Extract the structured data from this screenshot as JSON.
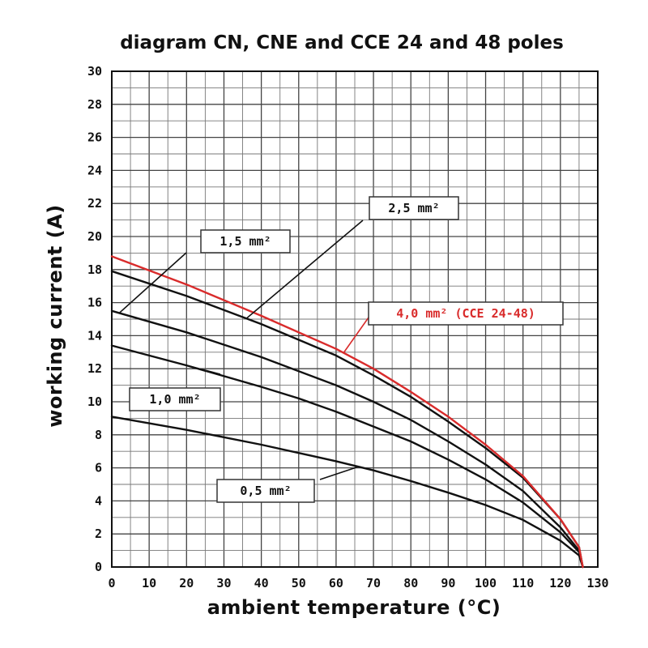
{
  "chart_data": {
    "type": "line",
    "title": "diagram CN, CNE and CCE 24 and 48 poles",
    "xlabel": "ambient temperature (°C)",
    "ylabel": "working current (A)",
    "xlim": [
      0,
      130
    ],
    "ylim": [
      0,
      30
    ],
    "x_ticks": [
      "0",
      "10",
      "20",
      "30",
      "40",
      "50",
      "60",
      "70",
      "80",
      "90",
      "100",
      "110",
      "120",
      "130"
    ],
    "y_ticks": [
      "0",
      "2",
      "4",
      "6",
      "8",
      "10",
      "12",
      "14",
      "16",
      "18",
      "20",
      "22",
      "24",
      "26",
      "28",
      "30"
    ],
    "grid": true,
    "x_minor_step": 5,
    "y_minor_step": 1,
    "series": [
      {
        "name": "0,5 mm²",
        "label": "0,5 mm²",
        "color": "#111111",
        "x": [
          0,
          20,
          40,
          60,
          70,
          80,
          90,
          100,
          110,
          120,
          125,
          126
        ],
        "y": [
          9.1,
          8.3,
          7.4,
          6.4,
          5.85,
          5.2,
          4.5,
          3.75,
          2.85,
          1.6,
          0.7,
          0
        ]
      },
      {
        "name": "1,0 mm²",
        "label": "1,0 mm²",
        "color": "#111111",
        "x": [
          0,
          20,
          40,
          50,
          60,
          80,
          90,
          100,
          110,
          120,
          125,
          126
        ],
        "y": [
          13.4,
          12.2,
          10.9,
          10.2,
          9.4,
          7.6,
          6.5,
          5.3,
          3.9,
          2.1,
          0.9,
          0
        ]
      },
      {
        "name": "1,5 mm²",
        "label": "1,5 mm²",
        "color": "#111111",
        "x": [
          0,
          20,
          40,
          60,
          70,
          80,
          90,
          100,
          110,
          120,
          125,
          126
        ],
        "y": [
          15.5,
          14.2,
          12.7,
          11.0,
          10.0,
          8.9,
          7.6,
          6.2,
          4.6,
          2.4,
          1.0,
          0
        ]
      },
      {
        "name": "2,5 mm²",
        "label": "2,5 mm²",
        "color": "#111111",
        "x": [
          0,
          20,
          40,
          60,
          70,
          80,
          90,
          100,
          110,
          120,
          125,
          126
        ],
        "y": [
          17.9,
          16.4,
          14.7,
          12.8,
          11.6,
          10.3,
          8.8,
          7.2,
          5.4,
          2.9,
          1.2,
          0
        ]
      },
      {
        "name": "4,0 mm² (CCE 24-48)",
        "label": "4,0 mm² (CCE 24-48)",
        "color": "#d92b2b",
        "x": [
          0,
          20,
          40,
          60,
          70,
          80,
          90,
          100,
          110,
          120,
          125,
          126
        ],
        "y": [
          18.8,
          17.1,
          15.2,
          13.2,
          12.0,
          10.6,
          9.1,
          7.4,
          5.5,
          2.9,
          1.2,
          0
        ]
      }
    ]
  }
}
